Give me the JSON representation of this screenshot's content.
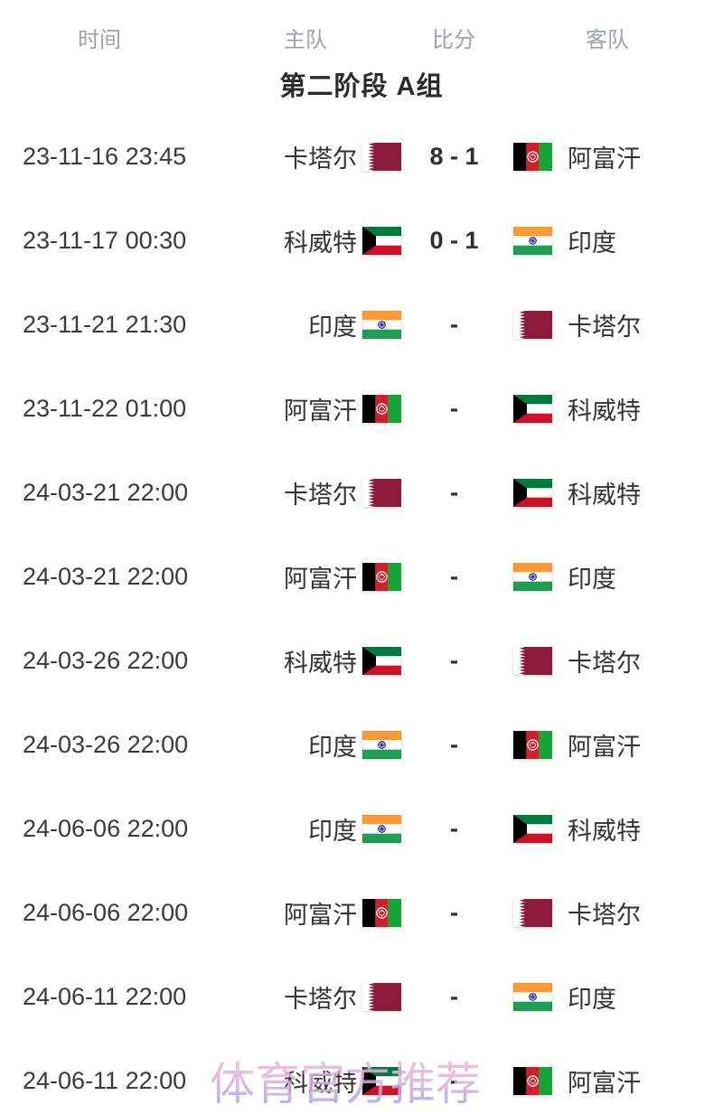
{
  "header": {
    "time_label": "时间",
    "home_label": "主队",
    "score_label": "比分",
    "away_label": "客队"
  },
  "group_title": "第二阶段 A组",
  "watermark": "体育官方推荐",
  "flag_colors": {
    "qatar": {
      "maroon": "#8d1b3d",
      "white": "#ffffff"
    },
    "afghanistan": {
      "black": "#000000",
      "red": "#ce2029",
      "green": "#13a538",
      "emblem": "#ffffff"
    },
    "kuwait": {
      "green": "#007a3d",
      "white": "#ffffff",
      "red": "#ce1126",
      "black": "#000000"
    },
    "india": {
      "saffron": "#ff9933",
      "white": "#ffffff",
      "green": "#1f9d55",
      "navy": "#000080"
    }
  },
  "matches": [
    {
      "time": "23-11-16 23:45",
      "home": "卡塔尔",
      "home_flag": "qatar",
      "score": "8 - 1",
      "away": "阿富汗",
      "away_flag": "afghanistan"
    },
    {
      "time": "23-11-17 00:30",
      "home": "科威特",
      "home_flag": "kuwait",
      "score": "0 - 1",
      "away": "印度",
      "away_flag": "india"
    },
    {
      "time": "23-11-21 21:30",
      "home": "印度",
      "home_flag": "india",
      "score": "-",
      "away": "卡塔尔",
      "away_flag": "qatar"
    },
    {
      "time": "23-11-22 01:00",
      "home": "阿富汗",
      "home_flag": "afghanistan",
      "score": "-",
      "away": "科威特",
      "away_flag": "kuwait"
    },
    {
      "time": "24-03-21 22:00",
      "home": "卡塔尔",
      "home_flag": "qatar",
      "score": "-",
      "away": "科威特",
      "away_flag": "kuwait"
    },
    {
      "time": "24-03-21 22:00",
      "home": "阿富汗",
      "home_flag": "afghanistan",
      "score": "-",
      "away": "印度",
      "away_flag": "india"
    },
    {
      "time": "24-03-26 22:00",
      "home": "科威特",
      "home_flag": "kuwait",
      "score": "-",
      "away": "卡塔尔",
      "away_flag": "qatar"
    },
    {
      "time": "24-03-26 22:00",
      "home": "印度",
      "home_flag": "india",
      "score": "-",
      "away": "阿富汗",
      "away_flag": "afghanistan"
    },
    {
      "time": "24-06-06 22:00",
      "home": "印度",
      "home_flag": "india",
      "score": "-",
      "away": "科威特",
      "away_flag": "kuwait"
    },
    {
      "time": "24-06-06 22:00",
      "home": "阿富汗",
      "home_flag": "afghanistan",
      "score": "-",
      "away": "卡塔尔",
      "away_flag": "qatar"
    },
    {
      "time": "24-06-11 22:00",
      "home": "卡塔尔",
      "home_flag": "qatar",
      "score": "-",
      "away": "印度",
      "away_flag": "india"
    },
    {
      "time": "24-06-11 22:00",
      "home": "科威特",
      "home_flag": "kuwait",
      "score": "-",
      "away": "阿富汗",
      "away_flag": "afghanistan"
    }
  ]
}
